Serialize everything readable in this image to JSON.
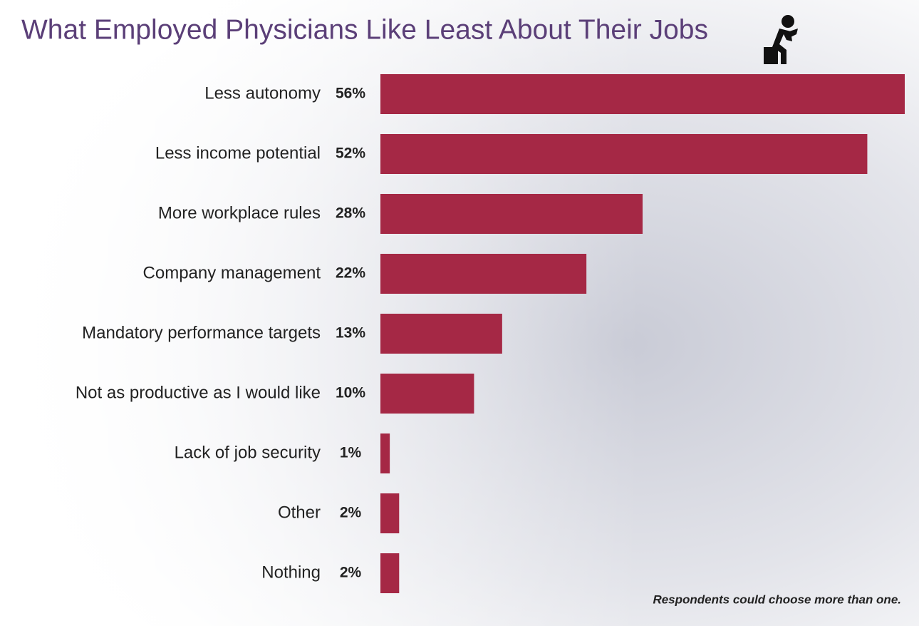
{
  "chart_data": {
    "type": "bar",
    "orientation": "horizontal",
    "title": "What Employed Physicians Like Least About Their Jobs",
    "categories": [
      "Less autonomy",
      "Less income potential",
      "More workplace rules",
      "Company management",
      "Mandatory performance targets",
      "Not as productive as I would like",
      "Lack of job security",
      "Other",
      "Nothing"
    ],
    "values": [
      56,
      52,
      28,
      22,
      13,
      10,
      1,
      2,
      2
    ],
    "value_labels": [
      "56%",
      "52%",
      "28%",
      "22%",
      "13%",
      "10%",
      "1%",
      "2%",
      "2%"
    ],
    "color": "#a52845",
    "note": "Respondents could choose more than one."
  }
}
